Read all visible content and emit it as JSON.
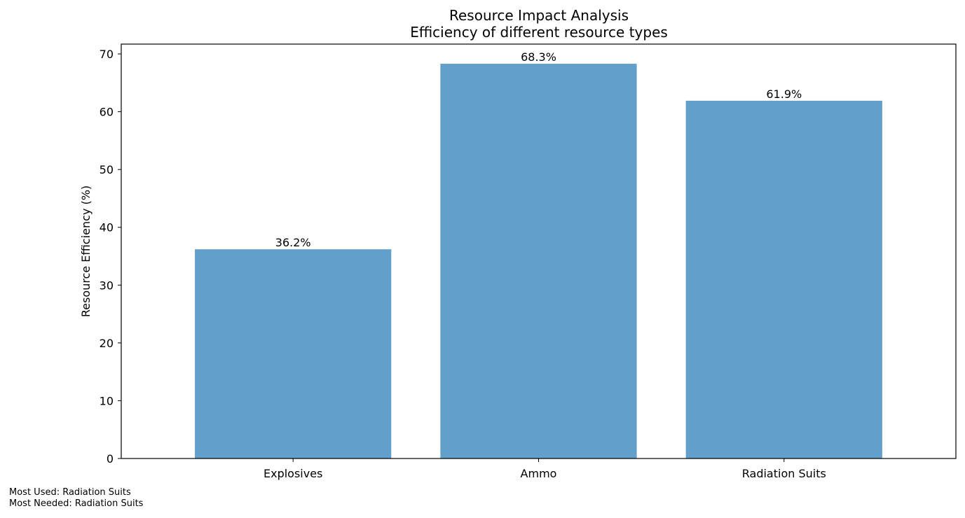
{
  "chart_data": {
    "type": "bar",
    "title": "Resource Impact Analysis",
    "subtitle": "Efficiency of different resource types",
    "xlabel": "",
    "ylabel": "Resource Efficiency (%)",
    "categories": [
      "Explosives",
      "Ammo",
      "Radiation Suits"
    ],
    "values": [
      36.2,
      68.3,
      61.9
    ],
    "value_labels": [
      "36.2%",
      "68.3%",
      "61.9%"
    ],
    "ylim": [
      0,
      71.7
    ],
    "yticks": [
      0,
      10,
      20,
      30,
      40,
      50,
      60,
      70
    ],
    "grid": false,
    "legend": "none",
    "bar_color": "#629fca"
  },
  "footer": {
    "most_used": "Most Used: Radiation Suits",
    "most_needed": "Most Needed: Radiation Suits"
  }
}
